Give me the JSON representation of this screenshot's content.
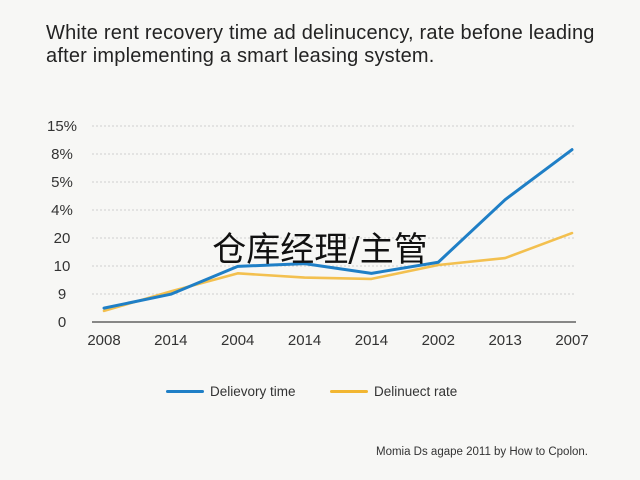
{
  "title": "White rent recovery time ad delinucency, rate befone leading after implementing a smart leasing system.",
  "overlay_text": "仓库经理/主管",
  "credit": "Momia Ds agape 2011 by How to Cpolon.",
  "colors": {
    "series1": "#1f7fc6",
    "series2": "#f2b631"
  },
  "chart_data": {
    "type": "line",
    "title": "White rent recovery time ad delinucency, rate befone leading after implementing a smart leasing system.",
    "xlabel": "",
    "ylabel": "",
    "categories": [
      "2008",
      "2014",
      "2004",
      "2014",
      "2014",
      "2002",
      "2013",
      "2007"
    ],
    "y_tick_labels": [
      "0",
      "9",
      "10",
      "20",
      "4%",
      "5%",
      "8%",
      "15%"
    ],
    "grid": true,
    "legend_position": "bottom",
    "series": [
      {
        "name": "Delievory time",
        "color": "#1f7fc6",
        "values": [
          0.5,
          1.0,
          2.0,
          2.1,
          1.75,
          2.15,
          4.4,
          6.2
        ]
      },
      {
        "name": "Delinuect rate",
        "color": "#f2b631",
        "values": [
          0.4,
          1.1,
          1.75,
          1.6,
          1.55,
          2.05,
          2.3,
          3.2
        ]
      }
    ]
  }
}
